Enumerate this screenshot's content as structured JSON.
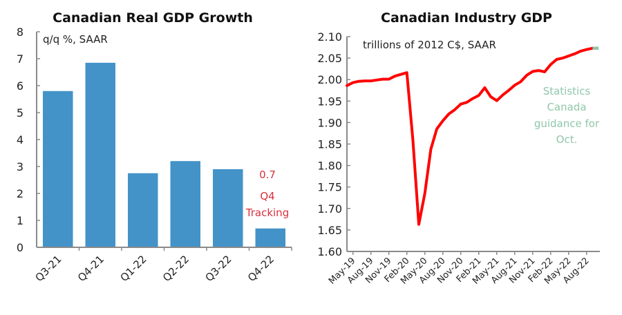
{
  "chart_data": [
    {
      "type": "bar",
      "title": "Canadian Real GDP Growth",
      "ylabel": "q/q %, SAAR",
      "xlabel": "",
      "categories": [
        "Q3-21",
        "Q4-21",
        "Q1-22",
        "Q2-22",
        "Q3-22",
        "Q4-22"
      ],
      "values": [
        5.8,
        6.85,
        2.75,
        3.2,
        2.9,
        0.7
      ],
      "ylim": [
        0,
        8
      ],
      "yticks": [
        "0",
        "1",
        "2",
        "3",
        "4",
        "5",
        "6",
        "7",
        "8"
      ],
      "grid": false,
      "bar_color": "#4393c9",
      "annotations": [
        {
          "text": "0.7",
          "color": "#d9303e"
        },
        {
          "text": "Q4",
          "color": "#d9303e"
        },
        {
          "text": "Tracking",
          "color": "#d9303e"
        }
      ]
    },
    {
      "type": "line",
      "title": "Canadian Industry GDP",
      "ylabel": "trillions of 2012 C$, SAAR",
      "xlabel": "",
      "ylim": [
        1.6,
        2.1
      ],
      "yticks": [
        "1.60",
        "1.65",
        "1.70",
        "1.75",
        "1.80",
        "1.85",
        "1.90",
        "1.95",
        "2.00",
        "2.05",
        "2.10"
      ],
      "xticks": [
        "May-19",
        "Aug-19",
        "Nov-19",
        "Feb-20",
        "May-20",
        "Aug-20",
        "Nov-20",
        "Feb-21",
        "May-21",
        "Aug-21",
        "Nov-21",
        "Feb-22",
        "May-22",
        "Aug-22"
      ],
      "grid": false,
      "series": [
        {
          "name": "Industry GDP",
          "color": "#ff0000",
          "x": [
            "Apr-19",
            "May-19",
            "Jun-19",
            "Jul-19",
            "Aug-19",
            "Sep-19",
            "Oct-19",
            "Nov-19",
            "Dec-19",
            "Jan-20",
            "Feb-20",
            "Mar-20",
            "Apr-20",
            "May-20",
            "Jun-20",
            "Jul-20",
            "Aug-20",
            "Sep-20",
            "Oct-20",
            "Nov-20",
            "Dec-20",
            "Jan-21",
            "Feb-21",
            "Mar-21",
            "Apr-21",
            "May-21",
            "Jun-21",
            "Jul-21",
            "Aug-21",
            "Sep-21",
            "Oct-21",
            "Nov-21",
            "Dec-21",
            "Jan-22",
            "Feb-22",
            "Mar-22",
            "Apr-22",
            "May-22",
            "Jun-22",
            "Jul-22",
            "Aug-22",
            "Sep-22"
          ],
          "values": [
            1.986,
            1.993,
            1.996,
            1.997,
            1.997,
            1.999,
            2.001,
            2.001,
            2.008,
            2.012,
            2.016,
            1.86,
            1.663,
            1.735,
            1.838,
            1.885,
            1.904,
            1.92,
            1.93,
            1.943,
            1.947,
            1.956,
            1.963,
            1.981,
            1.96,
            1.951,
            1.964,
            1.975,
            1.987,
            1.995,
            2.01,
            2.019,
            2.021,
            2.018,
            2.035,
            2.047,
            2.05,
            2.055,
            2.06,
            2.066,
            2.07,
            2.073
          ]
        },
        {
          "name": "Statistics Canada guidance",
          "color": "#8fc7a8",
          "x": [
            "Sep-22",
            "Oct-22"
          ],
          "values": [
            2.073,
            2.073
          ]
        }
      ],
      "annotations": [
        {
          "text": "Statistics",
          "color": "#8fc7a8"
        },
        {
          "text": "Canada",
          "color": "#8fc7a8"
        },
        {
          "text": "guidance for",
          "color": "#8fc7a8"
        },
        {
          "text": "Oct.",
          "color": "#8fc7a8"
        }
      ]
    }
  ]
}
